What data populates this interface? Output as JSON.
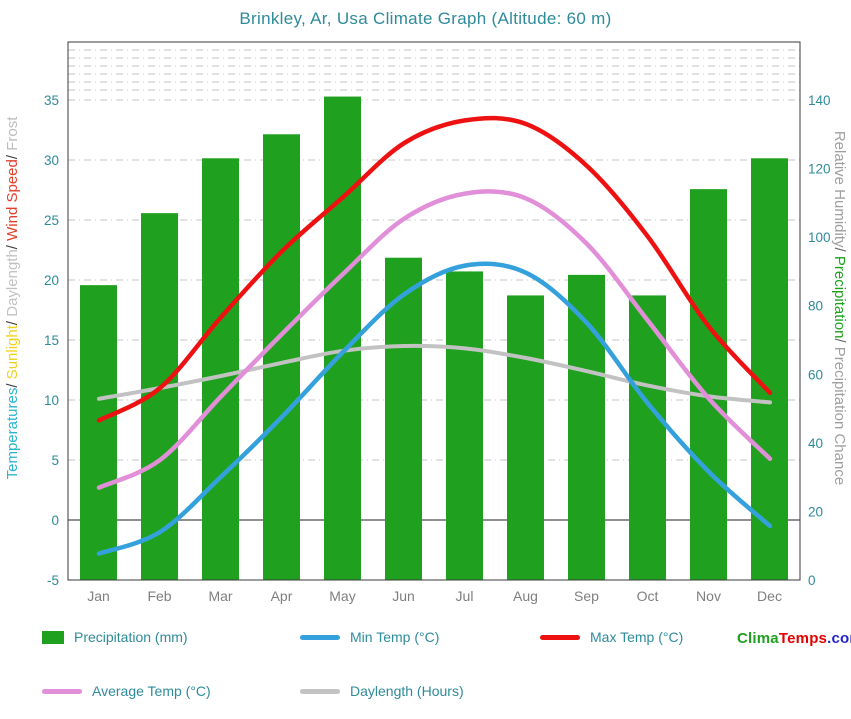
{
  "title": "Brinkley, Ar, Usa Climate Graph (Altitude: 60 m)",
  "axis_labels": {
    "left_segments": [
      {
        "text": "Temperatures",
        "color": "#2BB4CE"
      },
      {
        "text": "/ ",
        "color": "#3a3a3a"
      },
      {
        "text": "Sunlight",
        "color": "#F0D322"
      },
      {
        "text": "/ ",
        "color": "#3a3a3a"
      },
      {
        "text": "Daylength",
        "color": "#C2C2C2"
      },
      {
        "text": "/ ",
        "color": "#3a3a3a"
      },
      {
        "text": "Wind Speed",
        "color": "#E2402C"
      },
      {
        "text": "/ ",
        "color": "#3a3a3a"
      },
      {
        "text": "Frost",
        "color": "#BDBDBD"
      }
    ],
    "right_segments": [
      {
        "text": "Relative Humidity",
        "color": "#9F9F9F"
      },
      {
        "text": "/ ",
        "color": "#6a6a6a"
      },
      {
        "text": "Precipitation",
        "color": "#1FA11F"
      },
      {
        "text": "/ ",
        "color": "#6a6a6a"
      },
      {
        "text": "Precipitation Chance",
        "color": "#9F9F9F"
      }
    ]
  },
  "legend": {
    "items": [
      {
        "label": "Precipitation (mm)",
        "swatch": "bar",
        "color": "#1FA11F"
      },
      {
        "label": "Min Temp (°C)",
        "swatch": "line",
        "color": "#35A1DC"
      },
      {
        "label": "Max Temp (°C)",
        "swatch": "line",
        "color": "#EE1111"
      },
      {
        "label": "Average Temp (°C)",
        "swatch": "line",
        "color": "#E18FD8"
      },
      {
        "label": "Daylength (Hours)",
        "swatch": "line",
        "color": "#C2C2C2"
      }
    ]
  },
  "watermark": {
    "part1": "Clima",
    "part2": "Temps",
    "part3": ".com",
    "colors": [
      "#1FA11F",
      "#E60000",
      "#2323CC"
    ]
  },
  "chart_data": {
    "type": "bar",
    "title": "Brinkley, Ar, Usa Climate Graph (Altitude: 60 m)",
    "categories": [
      "Jan",
      "Feb",
      "Mar",
      "Apr",
      "May",
      "Jun",
      "Jul",
      "Aug",
      "Sep",
      "Oct",
      "Nov",
      "Dec"
    ],
    "bar_series": {
      "name": "Precipitation (mm)",
      "axis": "right",
      "color": "#1FA11F",
      "values": [
        86,
        107,
        123,
        130,
        141,
        94,
        90,
        83,
        89,
        83,
        114,
        123
      ]
    },
    "line_series": [
      {
        "name": "Daylength (Hours)",
        "axis": "left",
        "color": "#C2C2C2",
        "width": 4,
        "values": [
          10.1,
          11.0,
          12.0,
          13.1,
          14.1,
          14.5,
          14.3,
          13.5,
          12.4,
          11.2,
          10.3,
          9.8
        ]
      },
      {
        "name": "Average Temp (°C)",
        "axis": "left",
        "color": "#E18FD8",
        "width": 4.5,
        "values": [
          2.7,
          5.0,
          10.3,
          15.5,
          20.5,
          25.1,
          27.2,
          26.8,
          23.0,
          16.6,
          10.1,
          5.1
        ]
      },
      {
        "name": "Min Temp (°C)",
        "axis": "left",
        "color": "#35A1DC",
        "width": 4.5,
        "values": [
          -2.8,
          -1.0,
          3.6,
          8.6,
          14.0,
          18.8,
          21.2,
          20.6,
          16.4,
          9.7,
          4.0,
          -0.5
        ]
      },
      {
        "name": "Max Temp (°C)",
        "axis": "left",
        "color": "#EE1111",
        "width": 4.5,
        "values": [
          8.3,
          11.0,
          16.9,
          22.4,
          26.9,
          31.4,
          33.3,
          33.0,
          29.5,
          23.6,
          16.1,
          10.6
        ]
      }
    ],
    "left_axis": {
      "min": -5,
      "max": 35,
      "ticks": [
        -5,
        0,
        5,
        10,
        15,
        20,
        25,
        30,
        35
      ]
    },
    "right_axis": {
      "min": 0,
      "max": 140,
      "ticks": [
        0,
        20,
        40,
        60,
        80,
        100,
        120,
        140
      ]
    },
    "grid": "dash-dot horizontal",
    "legend_position": "bottom"
  },
  "colors": {
    "title": "#2E8B9B",
    "axis_numbers": "#2E8B9B",
    "month_labels": "#7F7F7F",
    "zero_line": "#909090",
    "gridline": "#C4C4C4",
    "frame": "#3a3a3a"
  }
}
